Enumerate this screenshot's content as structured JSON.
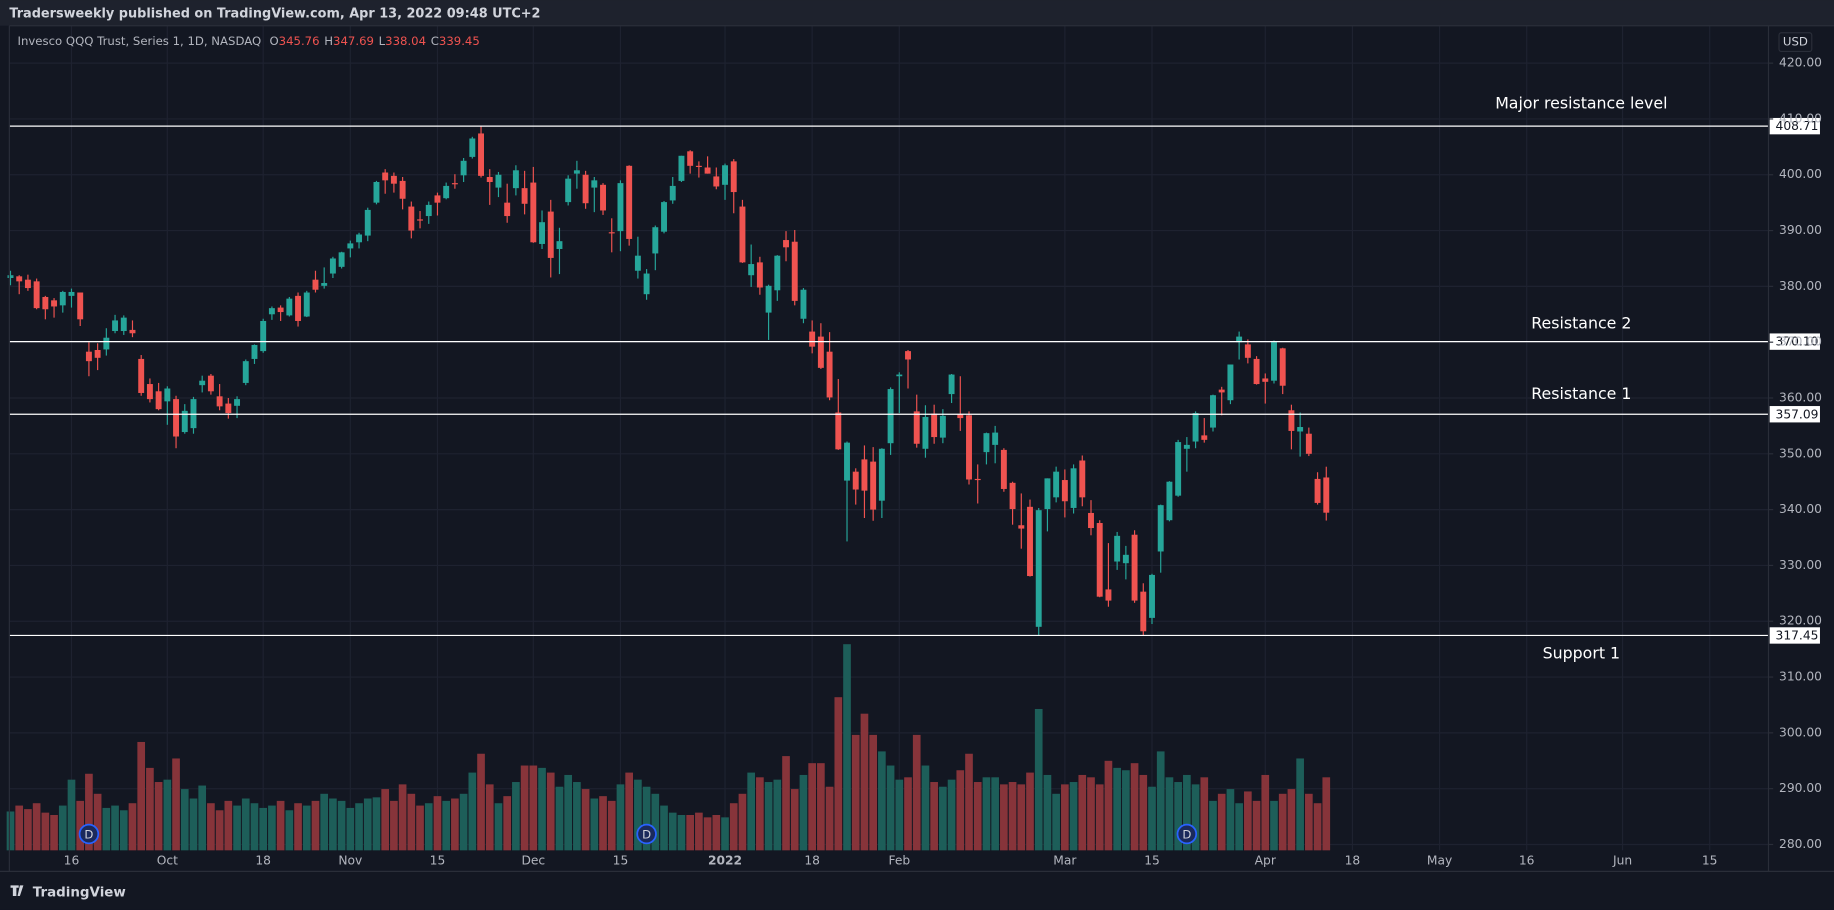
{
  "chart_data": {
    "type": "candlestick",
    "published": "Tradersweekly published on TradingView.com, Apr 13, 2022 09:48 UTC+2",
    "title": "Invesco QQQ Trust, Series 1, 1D, NASDAQ",
    "ohlc_labels": [
      "O",
      "H",
      "L",
      "C"
    ],
    "currency": "USD",
    "brand": "TradingView",
    "up_color": "#26a69a",
    "down_color": "#ef5350",
    "volume_up_color": "#1d5e59",
    "volume_down_color": "#87343a",
    "grid": true,
    "xlim": [
      -0.13,
      201.75
    ],
    "ylim": [
      278.95,
      426.7
    ],
    "xticks": [
      {
        "value": 7,
        "label": "16"
      },
      {
        "value": 18,
        "label": "Oct"
      },
      {
        "value": 29,
        "label": "18"
      },
      {
        "value": 39,
        "label": "Nov"
      },
      {
        "value": 49,
        "label": "15"
      },
      {
        "value": 60,
        "label": "Dec"
      },
      {
        "value": 70,
        "label": "15"
      },
      {
        "value": 82,
        "label": "2022"
      },
      {
        "value": 92,
        "label": "18"
      },
      {
        "value": 102,
        "label": "Feb"
      },
      {
        "value": 121,
        "label": "Mar"
      },
      {
        "value": 131,
        "label": "15"
      },
      {
        "value": 144,
        "label": "Apr"
      },
      {
        "value": 154,
        "label": "18"
      },
      {
        "value": 164,
        "label": "May"
      },
      {
        "value": 174,
        "label": "16"
      },
      {
        "value": 185,
        "label": "Jun"
      },
      {
        "value": 195,
        "label": "15"
      }
    ],
    "yticks": [
      {
        "value": 280,
        "label": "280.00"
      },
      {
        "value": 290,
        "label": "290.00"
      },
      {
        "value": 300,
        "label": "300.00"
      },
      {
        "value": 310,
        "label": "310.00"
      },
      {
        "value": 320,
        "label": "320.00"
      },
      {
        "value": 330,
        "label": "330.00"
      },
      {
        "value": 340,
        "label": "340.00"
      },
      {
        "value": 350,
        "label": "350.00"
      },
      {
        "value": 360,
        "label": "360.00"
      },
      {
        "value": 370,
        "label": "370.00"
      },
      {
        "value": 380,
        "label": "380.00"
      },
      {
        "value": 390,
        "label": "390.00"
      },
      {
        "value": 400,
        "label": "400.00"
      },
      {
        "value": 410,
        "label": "410.00"
      },
      {
        "value": 420,
        "label": "420.00"
      }
    ],
    "levels": [
      {
        "value": 408.71,
        "label": "408.71",
        "text": "Major resistance level"
      },
      {
        "value": 370.1,
        "label": "370.10",
        "text": "Resistance 2"
      },
      {
        "value": 357.09,
        "label": "357.09",
        "text": "Resistance 1"
      },
      {
        "value": 317.45,
        "label": "317.45",
        "text": "Support 1"
      }
    ],
    "dividends": {
      "label": "D",
      "x": [
        9,
        73,
        135
      ]
    },
    "ohlc": [
      [
        381.5,
        382.8,
        380.2,
        382.0
      ],
      [
        381.8,
        382.0,
        378.6,
        380.9
      ],
      [
        381.2,
        382.1,
        379.2,
        379.7
      ],
      [
        380.9,
        381.4,
        375.9,
        376.1
      ],
      [
        378.1,
        378.3,
        374.1,
        375.9
      ],
      [
        377.5,
        377.9,
        374.4,
        376.4
      ],
      [
        376.6,
        379.2,
        375.3,
        379.0
      ],
      [
        378.3,
        379.6,
        376.2,
        379.0
      ],
      [
        378.9,
        378.9,
        372.9,
        374.1
      ],
      [
        368.3,
        370.0,
        363.9,
        366.6
      ],
      [
        368.6,
        369.8,
        365.0,
        367.2
      ],
      [
        368.7,
        372.5,
        367.6,
        370.8
      ],
      [
        372.0,
        374.9,
        371.6,
        373.9
      ],
      [
        372.0,
        374.8,
        371.3,
        374.4
      ],
      [
        372.2,
        373.9,
        370.9,
        371.6
      ],
      [
        367.0,
        367.7,
        360.4,
        360.9
      ],
      [
        362.5,
        363.5,
        359.2,
        359.8
      ],
      [
        361.2,
        362.7,
        357.8,
        358.0
      ],
      [
        359.4,
        362.1,
        355.2,
        361.7
      ],
      [
        359.8,
        360.4,
        351.0,
        353.1
      ],
      [
        353.9,
        358.9,
        353.6,
        357.7
      ],
      [
        354.6,
        360.2,
        353.6,
        359.8
      ],
      [
        362.3,
        364.0,
        361.0,
        363.1
      ],
      [
        364.0,
        364.3,
        360.6,
        361.2
      ],
      [
        360.3,
        362.5,
        357.8,
        358.5
      ],
      [
        359.0,
        360.0,
        356.3,
        357.3
      ],
      [
        358.6,
        360.3,
        356.4,
        359.8
      ],
      [
        362.7,
        366.9,
        362.3,
        366.6
      ],
      [
        367.0,
        369.6,
        366.1,
        369.5
      ],
      [
        368.4,
        374.2,
        368.1,
        373.8
      ],
      [
        375.0,
        376.4,
        374.0,
        376.1
      ],
      [
        376.2,
        376.6,
        373.8,
        375.4
      ],
      [
        374.8,
        378.1,
        374.6,
        377.8
      ],
      [
        378.3,
        378.9,
        372.8,
        373.8
      ],
      [
        374.6,
        379.2,
        374.5,
        378.9
      ],
      [
        381.2,
        382.8,
        378.9,
        379.4
      ],
      [
        380.1,
        383.4,
        379.6,
        380.6
      ],
      [
        382.3,
        385.3,
        381.5,
        385.0
      ],
      [
        383.5,
        386.2,
        383.2,
        386.1
      ],
      [
        386.8,
        388.2,
        385.2,
        387.7
      ],
      [
        387.9,
        389.6,
        386.8,
        389.3
      ],
      [
        389.1,
        394.1,
        388.1,
        393.7
      ],
      [
        395.0,
        398.9,
        394.7,
        398.7
      ],
      [
        400.4,
        401.0,
        396.6,
        399.0
      ],
      [
        399.8,
        400.4,
        396.8,
        398.4
      ],
      [
        398.9,
        399.6,
        393.8,
        395.7
      ],
      [
        394.3,
        395.2,
        388.6,
        390.0
      ],
      [
        392.0,
        393.5,
        390.4,
        391.9
      ],
      [
        392.6,
        395.2,
        391.2,
        394.6
      ],
      [
        396.3,
        396.8,
        392.7,
        395.0
      ],
      [
        395.8,
        398.6,
        395.6,
        398.0
      ],
      [
        398.5,
        400.1,
        397.5,
        398.3
      ],
      [
        399.9,
        403.0,
        398.7,
        402.5
      ],
      [
        403.2,
        406.8,
        402.9,
        406.5
      ],
      [
        407.4,
        408.71,
        399.5,
        399.8
      ],
      [
        399.6,
        401.0,
        394.6,
        398.7
      ],
      [
        397.7,
        400.5,
        396.0,
        400.0
      ],
      [
        395.0,
        398.4,
        391.4,
        392.6
      ],
      [
        397.6,
        401.7,
        396.3,
        400.8
      ],
      [
        397.6,
        400.7,
        392.9,
        394.8
      ],
      [
        398.6,
        401.4,
        387.8,
        387.9
      ],
      [
        387.6,
        393.6,
        386.7,
        391.5
      ],
      [
        393.4,
        395.5,
        381.6,
        385.1
      ],
      [
        386.7,
        390.5,
        382.2,
        388.1
      ],
      [
        395.1,
        399.9,
        394.5,
        399.3
      ],
      [
        400.2,
        402.5,
        397.5,
        400.8
      ],
      [
        400.0,
        400.7,
        393.9,
        394.9
      ],
      [
        397.7,
        399.6,
        393.3,
        399.0
      ],
      [
        398.2,
        398.5,
        392.8,
        393.6
      ],
      [
        389.7,
        392.2,
        386.1,
        389.6
      ],
      [
        389.9,
        399.0,
        386.3,
        398.5
      ],
      [
        401.6,
        401.7,
        387.3,
        388.5
      ],
      [
        382.8,
        388.9,
        381.4,
        385.5
      ],
      [
        378.6,
        383.1,
        377.6,
        382.3
      ],
      [
        385.9,
        390.9,
        382.9,
        390.6
      ],
      [
        389.8,
        395.3,
        389.5,
        395.1
      ],
      [
        395.4,
        399.6,
        394.8,
        398.0
      ],
      [
        398.9,
        403.4,
        398.7,
        403.4
      ],
      [
        404.2,
        404.4,
        400.2,
        401.6
      ],
      [
        401.6,
        402.4,
        399.5,
        401.5
      ],
      [
        401.3,
        403.3,
        400.2,
        400.2
      ],
      [
        399.7,
        401.3,
        397.4,
        397.9
      ],
      [
        398.2,
        402.0,
        395.5,
        401.7
      ],
      [
        402.4,
        402.8,
        393.1,
        396.9
      ],
      [
        394.3,
        395.5,
        384.2,
        384.3
      ],
      [
        382.0,
        387.5,
        379.9,
        384.0
      ],
      [
        384.3,
        385.3,
        378.5,
        379.8
      ],
      [
        375.3,
        380.3,
        370.4,
        380.1
      ],
      [
        379.3,
        385.6,
        377.4,
        385.5
      ],
      [
        388.3,
        389.9,
        384.5,
        387.0
      ],
      [
        388.0,
        390.1,
        376.6,
        377.4
      ],
      [
        374.2,
        379.7,
        373.4,
        379.4
      ],
      [
        371.9,
        373.9,
        368.0,
        369.2
      ],
      [
        371.0,
        373.4,
        365.2,
        365.4
      ],
      [
        368.3,
        371.8,
        359.6,
        360.1
      ],
      [
        357.4,
        363.4,
        350.7,
        350.8
      ],
      [
        345.2,
        352.2,
        334.3,
        352.0
      ],
      [
        346.8,
        347.4,
        340.9,
        343.6
      ],
      [
        349.0,
        351.5,
        338.5,
        343.4
      ],
      [
        348.6,
        351.2,
        338.0,
        340.0
      ],
      [
        341.6,
        351.0,
        338.5,
        350.9
      ],
      [
        351.9,
        361.9,
        349.8,
        361.6
      ],
      [
        363.9,
        364.6,
        357.3,
        364.2
      ],
      [
        368.4,
        368.6,
        361.7,
        366.9
      ],
      [
        357.6,
        360.6,
        351.1,
        351.8
      ],
      [
        350.9,
        358.7,
        349.3,
        356.6
      ],
      [
        357.2,
        358.8,
        351.8,
        353.0
      ],
      [
        352.9,
        358.0,
        351.9,
        356.8
      ],
      [
        360.7,
        364.3,
        359.1,
        364.2
      ],
      [
        357.1,
        363.9,
        354.1,
        356.4
      ],
      [
        356.9,
        357.6,
        344.5,
        345.4
      ],
      [
        345.5,
        348.1,
        341.1,
        345.4
      ],
      [
        350.3,
        353.8,
        348.1,
        353.7
      ],
      [
        351.6,
        355.0,
        348.3,
        353.8
      ],
      [
        350.7,
        351.0,
        343.2,
        343.7
      ],
      [
        344.8,
        345.0,
        337.3,
        340.1
      ],
      [
        337.2,
        342.9,
        333.0,
        336.6
      ],
      [
        340.5,
        341.8,
        328.0,
        328.1
      ],
      [
        319.0,
        340.3,
        317.4,
        339.9
      ],
      [
        340.1,
        345.6,
        336.1,
        345.6
      ],
      [
        342.2,
        347.7,
        341.3,
        346.8
      ],
      [
        345.3,
        347.2,
        338.6,
        341.5
      ],
      [
        340.3,
        348.1,
        339.3,
        347.4
      ],
      [
        348.8,
        349.7,
        340.6,
        342.2
      ],
      [
        339.4,
        341.7,
        335.4,
        336.7
      ],
      [
        337.6,
        338.1,
        324.3,
        324.4
      ],
      [
        325.7,
        334.0,
        322.6,
        323.7
      ],
      [
        330.7,
        336.0,
        329.2,
        335.3
      ],
      [
        330.4,
        333.5,
        327.5,
        331.9
      ],
      [
        335.5,
        336.3,
        323.3,
        323.7
      ],
      [
        325.3,
        326.8,
        317.45,
        318.2
      ],
      [
        320.6,
        328.5,
        319.5,
        328.3
      ],
      [
        332.5,
        340.9,
        328.7,
        340.8
      ],
      [
        338.1,
        345.1,
        337.9,
        345.0
      ],
      [
        342.5,
        352.5,
        342.3,
        352.1
      ],
      [
        350.9,
        353.0,
        346.8,
        351.6
      ],
      [
        352.2,
        357.6,
        351.0,
        357.3
      ],
      [
        353.3,
        356.4,
        352.0,
        352.5
      ],
      [
        354.7,
        360.6,
        354.0,
        360.5
      ],
      [
        361.5,
        362.0,
        356.9,
        361.0
      ],
      [
        359.6,
        366.0,
        358.9,
        366.0
      ],
      [
        370.0,
        371.9,
        366.9,
        371.0
      ],
      [
        369.6,
        370.5,
        366.2,
        367.2
      ],
      [
        367.0,
        367.5,
        362.4,
        362.5
      ],
      [
        363.5,
        364.4,
        359.0,
        362.9
      ],
      [
        363.1,
        370.3,
        362.6,
        370.2
      ],
      [
        368.9,
        369.0,
        360.7,
        362.2
      ],
      [
        357.8,
        358.8,
        350.8,
        354.1
      ],
      [
        354.0,
        357.4,
        349.5,
        354.8
      ],
      [
        353.6,
        354.7,
        349.6,
        350.0
      ],
      [
        345.5,
        346.7,
        340.9,
        341.2
      ],
      [
        345.76,
        347.69,
        338.04,
        339.45
      ]
    ],
    "volume": [
      33,
      38,
      35,
      40,
      32,
      30,
      38,
      60,
      42,
      65,
      48,
      36,
      38,
      34,
      40,
      92,
      70,
      58,
      60,
      78,
      52,
      44,
      55,
      40,
      34,
      42,
      38,
      44,
      40,
      36,
      38,
      42,
      34,
      40,
      38,
      42,
      48,
      44,
      42,
      36,
      40,
      44,
      45,
      52,
      42,
      56,
      48,
      38,
      40,
      46,
      42,
      44,
      48,
      66,
      82,
      56,
      40,
      46,
      58,
      72,
      72,
      70,
      66,
      54,
      64,
      58,
      52,
      44,
      46,
      42,
      56,
      66,
      60,
      54,
      48,
      38,
      32,
      30,
      30,
      32,
      28,
      30,
      28,
      40,
      48,
      66,
      62,
      58,
      60,
      80,
      52,
      64,
      74,
      74,
      54,
      130,
      175,
      98,
      116,
      98,
      84,
      72,
      60,
      62,
      98,
      72,
      58,
      54,
      60,
      68,
      82,
      58,
      62,
      62,
      56,
      58,
      56,
      66,
      120,
      64,
      48,
      56,
      58,
      64,
      62,
      56,
      76,
      70,
      68,
      74,
      64,
      54,
      84,
      62,
      58,
      64,
      56,
      62,
      42,
      48,
      52,
      40,
      50,
      42,
      64,
      42,
      48,
      52,
      78,
      48,
      40,
      62
    ]
  }
}
